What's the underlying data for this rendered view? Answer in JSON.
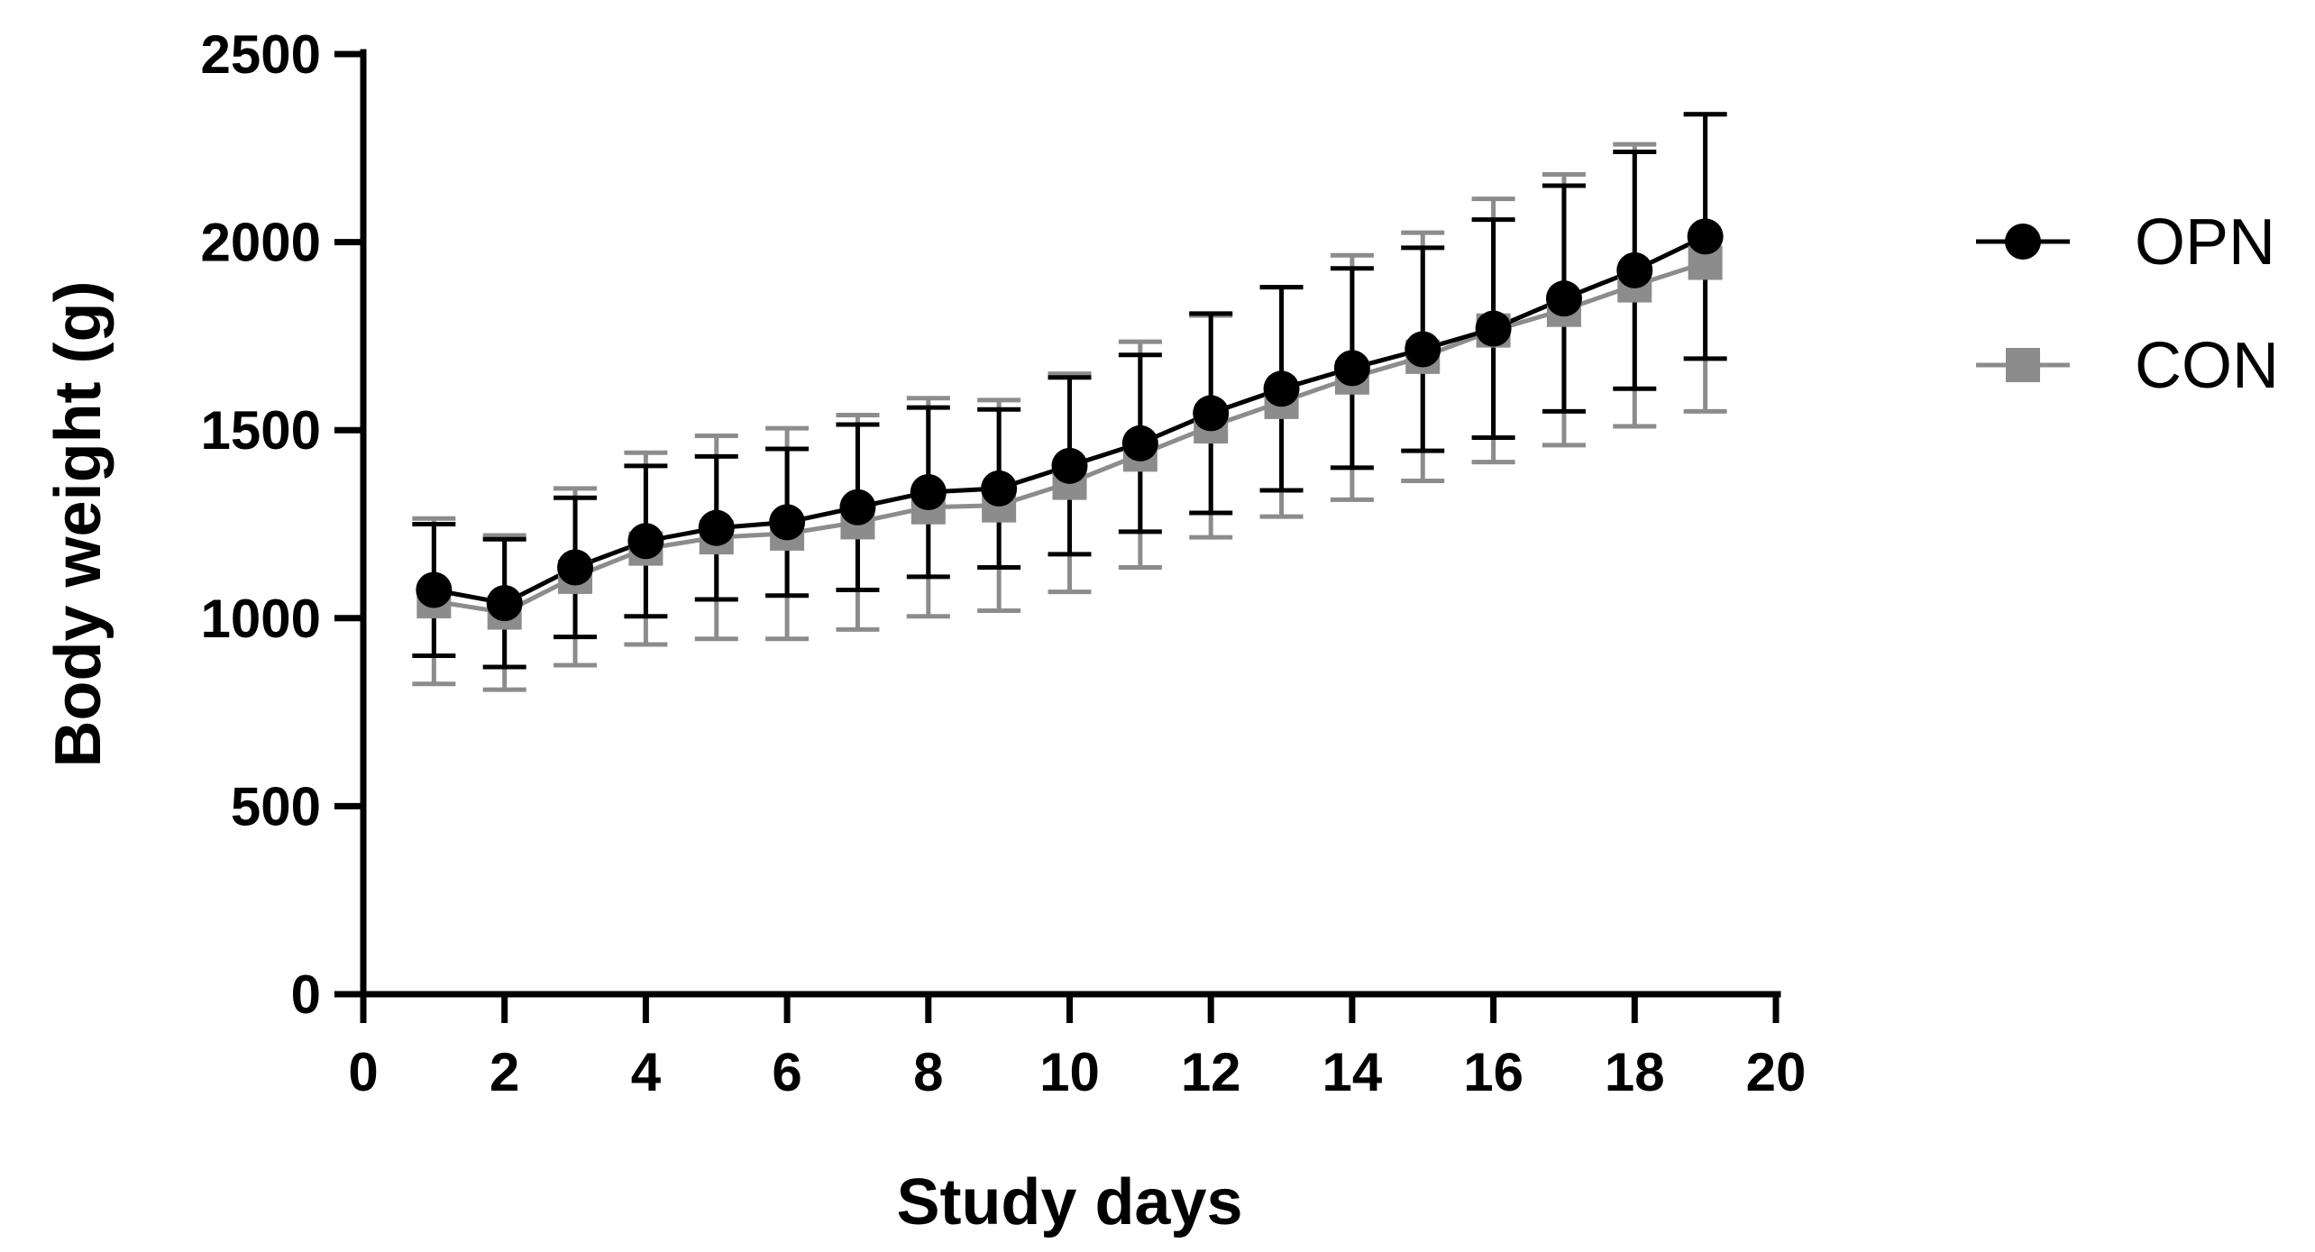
{
  "chart_data": {
    "type": "line",
    "title": "",
    "xlabel": "Study days",
    "ylabel": "Body weight (g)",
    "xlim": [
      0,
      20
    ],
    "ylim": [
      0,
      2500
    ],
    "xticks": [
      0,
      2,
      4,
      6,
      8,
      10,
      12,
      14,
      16,
      18,
      20
    ],
    "yticks": [
      0,
      500,
      1000,
      1500,
      2000,
      2500
    ],
    "grid": false,
    "legend_position": "top-right",
    "x": [
      1,
      2,
      3,
      4,
      5,
      6,
      7,
      8,
      9,
      10,
      11,
      12,
      13,
      14,
      15,
      16,
      17,
      18,
      19
    ],
    "series": [
      {
        "name": "CON",
        "marker": "square",
        "color": "#8c8c8c",
        "values": [
          1045,
          1015,
          1110,
          1185,
          1215,
          1225,
          1255,
          1295,
          1300,
          1360,
          1435,
          1510,
          1575,
          1640,
          1695,
          1765,
          1820,
          1885,
          1945
        ],
        "error": [
          220,
          205,
          235,
          255,
          270,
          280,
          285,
          290,
          280,
          290,
          300,
          295,
          305,
          325,
          330,
          350,
          360,
          375,
          395
        ]
      },
      {
        "name": "OPN",
        "marker": "circle",
        "color": "#000000",
        "values": [
          1075,
          1040,
          1135,
          1205,
          1240,
          1255,
          1295,
          1335,
          1345,
          1405,
          1465,
          1545,
          1610,
          1665,
          1715,
          1770,
          1850,
          1925,
          2015
        ],
        "error": [
          175,
          170,
          185,
          200,
          190,
          195,
          220,
          225,
          210,
          235,
          235,
          265,
          270,
          265,
          270,
          290,
          300,
          315,
          325
        ]
      }
    ]
  }
}
